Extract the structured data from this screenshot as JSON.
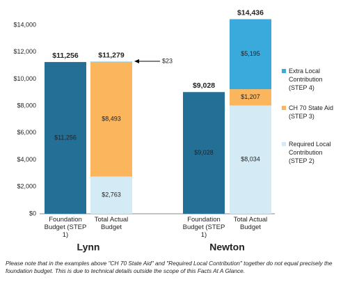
{
  "chart_data": {
    "type": "bar",
    "groups": [
      "Lynn",
      "Newton"
    ],
    "categories": [
      "Foundation Budget (STEP 1)",
      "Total Actual Budget",
      "Foundation Budget (STEP 1)",
      "Total Actual Budget"
    ],
    "series": [
      {
        "color": "#246f96",
        "values": [
          11256,
          null,
          9028,
          null
        ],
        "value_labels": [
          "$11,256",
          null,
          "$9,028",
          null
        ]
      },
      {
        "name": "Required Local Contribution (STEP 2)",
        "color": "#d4ebf6",
        "values": [
          null,
          2763,
          null,
          8034
        ],
        "value_labels": [
          null,
          "$2,763",
          null,
          "$8,034"
        ]
      },
      {
        "name": "CH 70 State Aid (STEP 3)",
        "color": "#fbb55c",
        "values": [
          null,
          8493,
          null,
          1207
        ],
        "value_labels": [
          null,
          "$8,493",
          null,
          "$1,207"
        ]
      },
      {
        "name": "Extra Local Contribution (STEP 4)",
        "color": "#3aa9dc",
        "values": [
          null,
          23,
          null,
          5195
        ],
        "value_labels": [
          null,
          "$23",
          null,
          "$5,195"
        ]
      }
    ],
    "totals": [
      11256,
      11279,
      9028,
      14436
    ],
    "total_labels": [
      "$11,256",
      "$11,279",
      "$9,028",
      "$14,436"
    ],
    "ylim": [
      0,
      14500
    ],
    "yticks": [
      {
        "value": 0,
        "label": "$0"
      },
      {
        "value": 2000,
        "label": "$2,000"
      },
      {
        "value": 4000,
        "label": "$4,000"
      },
      {
        "value": 6000,
        "label": "$6,000"
      },
      {
        "value": 8000,
        "label": "$8,000"
      },
      {
        "value": 10000,
        "label": "$10,000"
      },
      {
        "value": 12000,
        "label": "$12,000"
      },
      {
        "value": 14000,
        "label": "$14,000"
      }
    ],
    "note": "Please note that in the examples above \"CH 70 State Aid\" and \"Required Local Contribution\" together do not equal precisely the foundation budget. This is due to technical details outside the scope of this Facts At A Glance."
  }
}
